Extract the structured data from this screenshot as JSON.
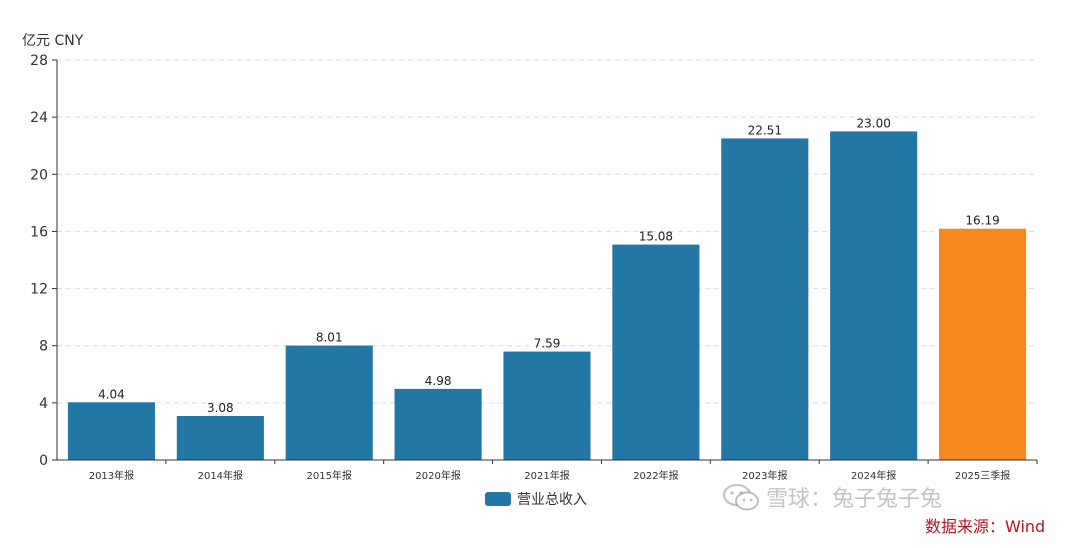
{
  "chart_data": {
    "type": "bar",
    "unit_label": "亿元  CNY",
    "categories": [
      "2013年报",
      "2014年报",
      "2015年报",
      "2020年报",
      "2021年报",
      "2022年报",
      "2023年报",
      "2024年报",
      "2025三季报"
    ],
    "series": [
      {
        "name": "营业总收入",
        "values": [
          4.04,
          3.08,
          8.01,
          4.98,
          7.59,
          15.08,
          22.51,
          23.0,
          16.19
        ]
      }
    ],
    "value_labels": [
      "4.04",
      "3.08",
      "8.01",
      "4.98",
      "7.59",
      "15.08",
      "22.51",
      "23.00",
      "16.19"
    ],
    "y_ticks": [
      0,
      4,
      8,
      12,
      16,
      20,
      24,
      28
    ],
    "ylim": [
      0,
      28
    ],
    "grid": true,
    "legend_position": "bottom-center",
    "colors": {
      "primary": "#2277a5",
      "highlight": "#f5891f",
      "highlight_index": 8
    }
  },
  "watermark": "雪球：兔子兔子兔",
  "source_note": "数据来源：Wind"
}
